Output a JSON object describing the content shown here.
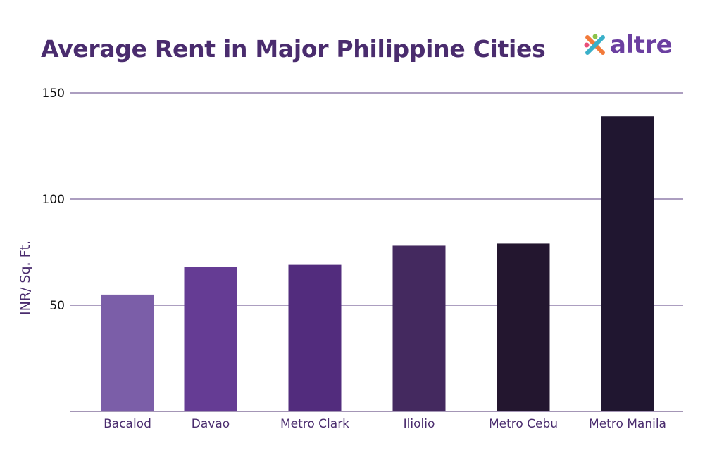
{
  "chart_data": {
    "type": "bar",
    "title": "Average Rent in Major Philippine Cities",
    "ylabel": "INR/ Sq. Ft.",
    "xlabel": "",
    "categories": [
      "Bacalod",
      "Davao",
      "Metro Clark",
      "Iliolio",
      "Metro Cebu",
      "Metro Manila"
    ],
    "values": [
      55,
      68,
      69,
      78,
      79,
      139
    ],
    "ylim": [
      0,
      150
    ],
    "yticks": [
      50,
      100,
      150
    ],
    "grid": true,
    "colors": [
      "#7b5ea8",
      "#653c94",
      "#522c7d",
      "#44295f",
      "#23162f",
      "#201630"
    ]
  },
  "brand": {
    "name": "altre",
    "icon": "altre-logo-icon"
  }
}
